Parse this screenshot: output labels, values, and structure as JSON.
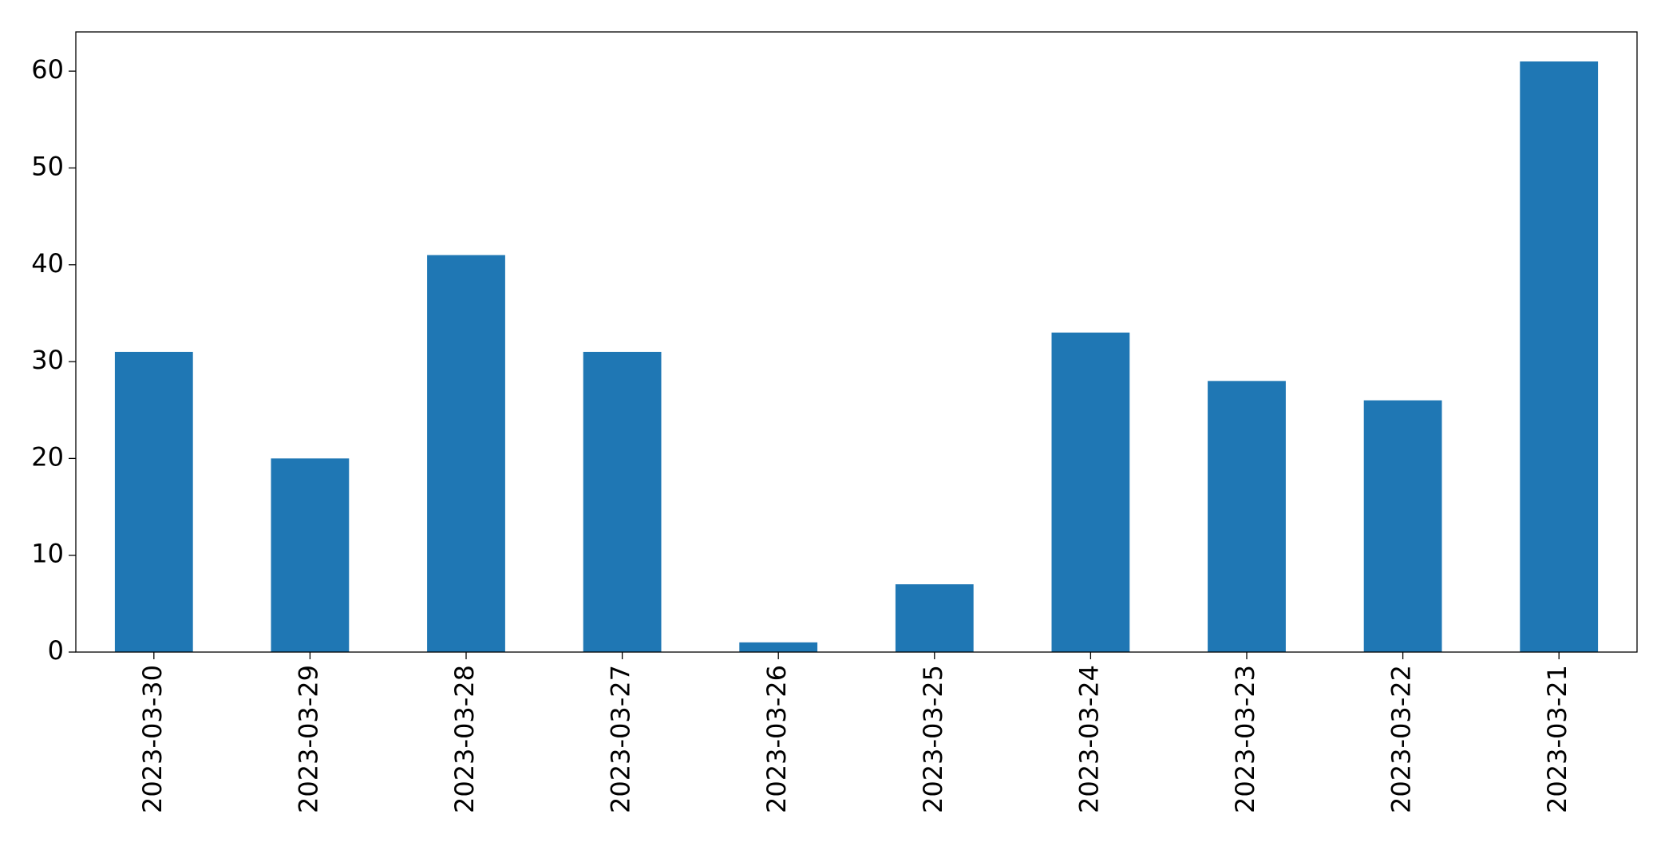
{
  "chart_data": {
    "type": "bar",
    "categories": [
      "2023-03-30",
      "2023-03-29",
      "2023-03-28",
      "2023-03-27",
      "2023-03-26",
      "2023-03-25",
      "2023-03-24",
      "2023-03-23",
      "2023-03-22",
      "2023-03-21"
    ],
    "values": [
      31,
      20,
      41,
      31,
      1,
      7,
      33,
      28,
      26,
      61
    ],
    "color": "#1f77b4",
    "ylim": [
      0,
      64.05
    ],
    "yticks": [
      0,
      10,
      20,
      30,
      40,
      50,
      60
    ],
    "grid": false
  }
}
